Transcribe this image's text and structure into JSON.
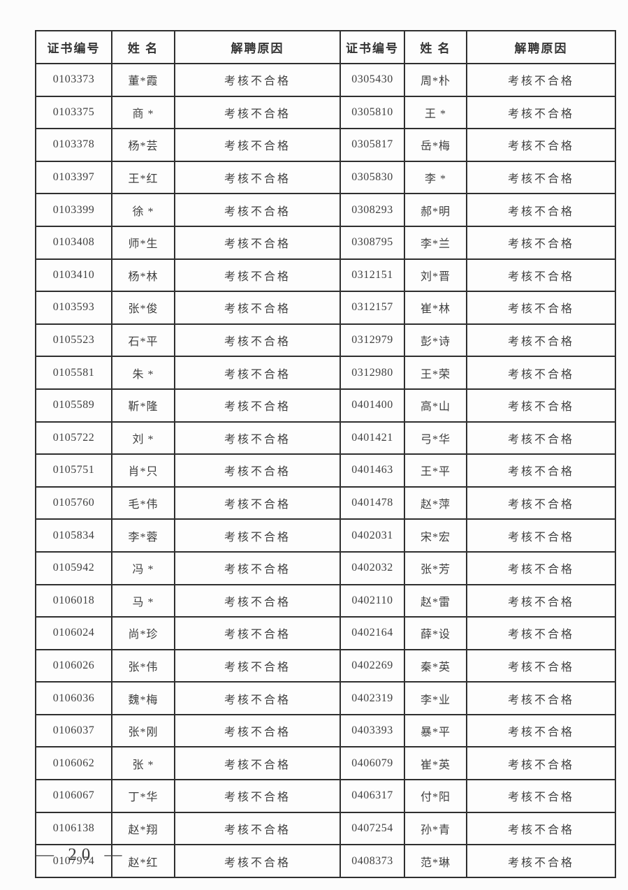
{
  "page": {
    "footer_page_number": "— 20 —"
  },
  "table": {
    "headers": [
      "证书编号",
      "姓  名",
      "解聘原因",
      "证书编号",
      "姓  名",
      "解聘原因"
    ],
    "column_roles": [
      "cert",
      "name",
      "reason",
      "cert",
      "name",
      "reason"
    ],
    "rows": [
      [
        "0103373",
        "董*霞",
        "考核不合格",
        "0305430",
        "周*朴",
        "考核不合格"
      ],
      [
        "0103375",
        "商 *",
        "考核不合格",
        "0305810",
        "王 *",
        "考核不合格"
      ],
      [
        "0103378",
        "杨*芸",
        "考核不合格",
        "0305817",
        "岳*梅",
        "考核不合格"
      ],
      [
        "0103397",
        "王*红",
        "考核不合格",
        "0305830",
        "李 *",
        "考核不合格"
      ],
      [
        "0103399",
        "徐 *",
        "考核不合格",
        "0308293",
        "郝*明",
        "考核不合格"
      ],
      [
        "0103408",
        "师*生",
        "考核不合格",
        "0308795",
        "李*兰",
        "考核不合格"
      ],
      [
        "0103410",
        "杨*林",
        "考核不合格",
        "0312151",
        "刘*晋",
        "考核不合格"
      ],
      [
        "0103593",
        "张*俊",
        "考核不合格",
        "0312157",
        "崔*林",
        "考核不合格"
      ],
      [
        "0105523",
        "石*平",
        "考核不合格",
        "0312979",
        "彭*诗",
        "考核不合格"
      ],
      [
        "0105581",
        "朱 *",
        "考核不合格",
        "0312980",
        "王*荣",
        "考核不合格"
      ],
      [
        "0105589",
        "靳*隆",
        "考核不合格",
        "0401400",
        "高*山",
        "考核不合格"
      ],
      [
        "0105722",
        "刘 *",
        "考核不合格",
        "0401421",
        "弓*华",
        "考核不合格"
      ],
      [
        "0105751",
        "肖*只",
        "考核不合格",
        "0401463",
        "王*平",
        "考核不合格"
      ],
      [
        "0105760",
        "毛*伟",
        "考核不合格",
        "0401478",
        "赵*萍",
        "考核不合格"
      ],
      [
        "0105834",
        "李*蓉",
        "考核不合格",
        "0402031",
        "宋*宏",
        "考核不合格"
      ],
      [
        "0105942",
        "冯 *",
        "考核不合格",
        "0402032",
        "张*芳",
        "考核不合格"
      ],
      [
        "0106018",
        "马 *",
        "考核不合格",
        "0402110",
        "赵*雷",
        "考核不合格"
      ],
      [
        "0106024",
        "尚*珍",
        "考核不合格",
        "0402164",
        "薛*设",
        "考核不合格"
      ],
      [
        "0106026",
        "张*伟",
        "考核不合格",
        "0402269",
        "秦*英",
        "考核不合格"
      ],
      [
        "0106036",
        "魏*梅",
        "考核不合格",
        "0402319",
        "李*业",
        "考核不合格"
      ],
      [
        "0106037",
        "张*刚",
        "考核不合格",
        "0403393",
        "暴*平",
        "考核不合格"
      ],
      [
        "0106062",
        "张 *",
        "考核不合格",
        "0406079",
        "崔*英",
        "考核不合格"
      ],
      [
        "0106067",
        "丁*华",
        "考核不合格",
        "0406317",
        "付*阳",
        "考核不合格"
      ],
      [
        "0106138",
        "赵*翔",
        "考核不合格",
        "0407254",
        "孙*青",
        "考核不合格"
      ],
      [
        "0107974",
        "赵*红",
        "考核不合格",
        "0408373",
        "范*琳",
        "考核不合格"
      ]
    ]
  }
}
